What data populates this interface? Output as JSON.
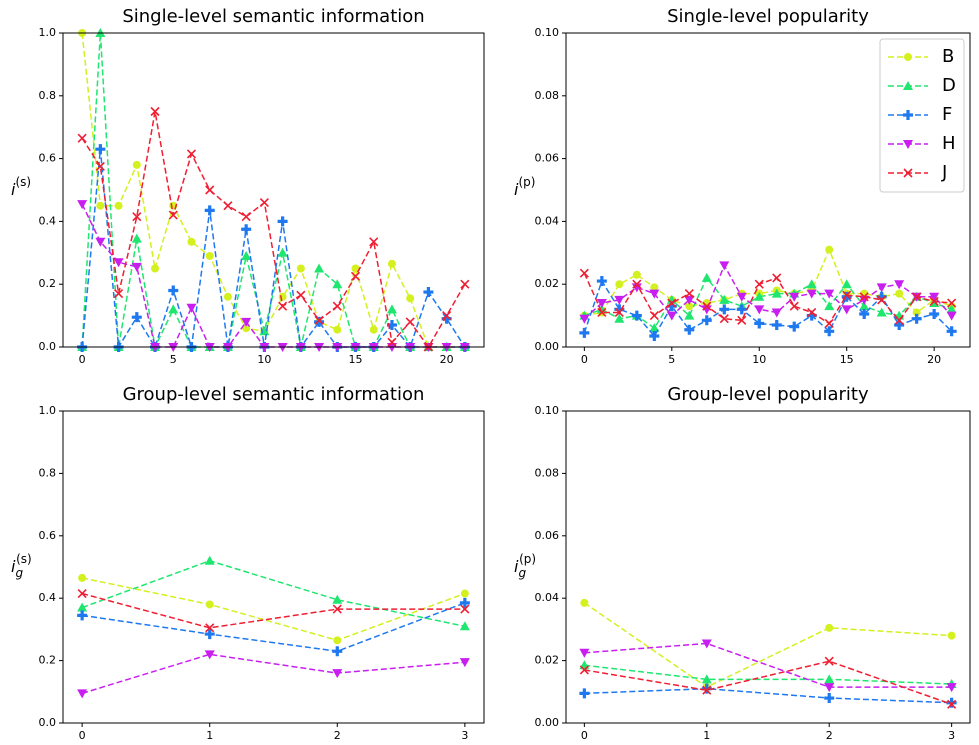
{
  "chart_data": [
    {
      "type": "line",
      "title": "Single-level semantic information",
      "ylabel": {
        "main": "i",
        "sup": "(s)"
      },
      "x": [
        0,
        1,
        2,
        3,
        4,
        5,
        6,
        7,
        8,
        9,
        10,
        11,
        12,
        13,
        14,
        15,
        16,
        17,
        18,
        19,
        20,
        21
      ],
      "xlim": [
        -1.05,
        22.05
      ],
      "xticks": [
        0,
        5,
        10,
        15,
        20
      ],
      "ylim": [
        0,
        1.0
      ],
      "yticks": [
        {
          "value": 0,
          "label": "0.0"
        },
        {
          "value": 0.2,
          "label": "0.2"
        },
        {
          "value": 0.4,
          "label": "0.4"
        },
        {
          "value": 0.6,
          "label": "0.6"
        },
        {
          "value": 0.8,
          "label": "0.8"
        },
        {
          "value": 1.0,
          "label": "1.0"
        }
      ],
      "series": [
        {
          "color": "#d4f01e",
          "marker": "circle",
          "values": [
            1.0,
            0.45,
            0.45,
            0.58,
            0.25,
            0.45,
            0.335,
            0.29,
            0.16,
            0.06,
            0.05,
            0.16,
            0.25,
            0.08,
            0.055,
            0.25,
            0.055,
            0.265,
            0.155,
            0,
            0,
            0
          ]
        },
        {
          "color": "#1ee66e",
          "marker": "triangle-up",
          "values": [
            0,
            1.0,
            0,
            0.345,
            0,
            0.12,
            0,
            0,
            0,
            0.29,
            0.05,
            0.3,
            0,
            0.25,
            0.2,
            0,
            0,
            0.12,
            0,
            0,
            0,
            0
          ]
        },
        {
          "color": "#1e78f0",
          "marker": "plus",
          "values": [
            0,
            0.63,
            0,
            0.095,
            0,
            0.18,
            0,
            0.435,
            0,
            0.375,
            0,
            0.4,
            0,
            0.08,
            0,
            0,
            0,
            0.07,
            0,
            0.175,
            0.09,
            0
          ]
        },
        {
          "color": "#c81ef0",
          "marker": "triangle-down",
          "values": [
            0.455,
            0.335,
            0.27,
            0.255,
            0,
            0,
            0.125,
            0,
            0,
            0.08,
            0,
            0,
            0,
            0,
            0,
            0,
            0,
            0,
            0,
            0,
            0,
            0
          ]
        },
        {
          "color": "#f01e32",
          "marker": "x",
          "values": [
            0.665,
            0.575,
            0.17,
            0.415,
            0.75,
            0.42,
            0.615,
            0.5,
            0.45,
            0.415,
            0.46,
            0.13,
            0.165,
            0.085,
            0.13,
            0.225,
            0.335,
            0.015,
            0.08,
            0,
            0.1,
            0.2
          ]
        }
      ]
    },
    {
      "type": "line",
      "title": "Single-level popularity",
      "ylabel": {
        "main": "i",
        "sup": "(p)"
      },
      "x": [
        0,
        1,
        2,
        3,
        4,
        5,
        6,
        7,
        8,
        9,
        10,
        11,
        12,
        13,
        14,
        15,
        16,
        17,
        18,
        19,
        20,
        21
      ],
      "xlim": [
        -1.05,
        22.05
      ],
      "xticks": [
        0,
        5,
        10,
        15,
        20
      ],
      "ylim": [
        0,
        0.1
      ],
      "yticks": [
        {
          "value": 0,
          "label": "0.00"
        },
        {
          "value": 0.02,
          "label": "0.02"
        },
        {
          "value": 0.04,
          "label": "0.04"
        },
        {
          "value": 0.06,
          "label": "0.06"
        },
        {
          "value": 0.08,
          "label": "0.08"
        },
        {
          "value": 0.1,
          "label": "0.10"
        }
      ],
      "legend": "upper right",
      "series": [
        {
          "name": "B",
          "color": "#d4f01e",
          "marker": "circle",
          "values": [
            0.01,
            0.011,
            0.02,
            0.023,
            0.019,
            0.015,
            0.013,
            0.014,
            0.015,
            0.017,
            0.017,
            0.018,
            0.017,
            0.018,
            0.031,
            0.017,
            0.017,
            0.016,
            0.017,
            0.011,
            0.015,
            0.013
          ]
        },
        {
          "name": "D",
          "color": "#1ee66e",
          "marker": "triangle-up",
          "values": [
            0.01,
            0.012,
            0.009,
            0.01,
            0.006,
            0.015,
            0.01,
            0.022,
            0.015,
            0.013,
            0.016,
            0.017,
            0.017,
            0.02,
            0.013,
            0.02,
            0.013,
            0.011,
            0.01,
            0.016,
            0.014,
            0.012
          ]
        },
        {
          "name": "F",
          "color": "#1e78f0",
          "marker": "plus",
          "values": [
            0.0045,
            0.021,
            0.012,
            0.01,
            0.0035,
            0.013,
            0.0055,
            0.0085,
            0.012,
            0.012,
            0.0075,
            0.007,
            0.0065,
            0.01,
            0.005,
            0.016,
            0.0105,
            0.016,
            0.007,
            0.009,
            0.0105,
            0.005
          ]
        },
        {
          "name": "H",
          "color": "#c81ef0",
          "marker": "triangle-down",
          "values": [
            0.009,
            0.014,
            0.015,
            0.019,
            0.017,
            0.01,
            0.015,
            0.012,
            0.026,
            0.016,
            0.012,
            0.011,
            0.016,
            0.017,
            0.017,
            0.012,
            0.015,
            0.019,
            0.02,
            0.016,
            0.016,
            0.01
          ]
        },
        {
          "name": "J",
          "color": "#f01e32",
          "marker": "x",
          "values": [
            0.0235,
            0.011,
            0.011,
            0.02,
            0.01,
            0.014,
            0.017,
            0.013,
            0.009,
            0.0085,
            0.02,
            0.022,
            0.013,
            0.011,
            0.0075,
            0.0165,
            0.016,
            0.015,
            0.0085,
            0.016,
            0.0145,
            0.014
          ]
        }
      ]
    },
    {
      "type": "line",
      "title": "Group-level semantic information",
      "ylabel": {
        "main": "i",
        "sub": "g",
        "sup": "(s)"
      },
      "x": [
        0,
        1,
        2,
        3
      ],
      "xlim": [
        -0.15,
        3.15
      ],
      "xticks": [
        0,
        1,
        2,
        3
      ],
      "ylim": [
        0,
        1.0
      ],
      "yticks": [
        {
          "value": 0,
          "label": "0.0"
        },
        {
          "value": 0.2,
          "label": "0.2"
        },
        {
          "value": 0.4,
          "label": "0.4"
        },
        {
          "value": 0.6,
          "label": "0.6"
        },
        {
          "value": 0.8,
          "label": "0.8"
        },
        {
          "value": 1.0,
          "label": "1.0"
        }
      ],
      "series": [
        {
          "color": "#d4f01e",
          "marker": "circle",
          "values": [
            0.465,
            0.38,
            0.265,
            0.415
          ]
        },
        {
          "color": "#1ee66e",
          "marker": "triangle-up",
          "values": [
            0.37,
            0.52,
            0.395,
            0.31
          ]
        },
        {
          "color": "#1e78f0",
          "marker": "plus",
          "values": [
            0.345,
            0.285,
            0.23,
            0.385
          ]
        },
        {
          "color": "#c81ef0",
          "marker": "triangle-down",
          "values": [
            0.095,
            0.22,
            0.16,
            0.195
          ]
        },
        {
          "color": "#f01e32",
          "marker": "x",
          "values": [
            0.415,
            0.305,
            0.365,
            0.365
          ]
        }
      ]
    },
    {
      "type": "line",
      "title": "Group-level popularity",
      "ylabel": {
        "main": "i",
        "sub": "g",
        "sup": "(p)"
      },
      "x": [
        0,
        1,
        2,
        3
      ],
      "xlim": [
        -0.15,
        3.15
      ],
      "xticks": [
        0,
        1,
        2,
        3
      ],
      "ylim": [
        0,
        0.1
      ],
      "yticks": [
        {
          "value": 0,
          "label": "0.00"
        },
        {
          "value": 0.02,
          "label": "0.02"
        },
        {
          "value": 0.04,
          "label": "0.04"
        },
        {
          "value": 0.06,
          "label": "0.06"
        },
        {
          "value": 0.08,
          "label": "0.08"
        },
        {
          "value": 0.1,
          "label": "0.10"
        }
      ],
      "series": [
        {
          "color": "#d4f01e",
          "marker": "circle",
          "values": [
            0.0385,
            0.0115,
            0.0305,
            0.028
          ]
        },
        {
          "color": "#1ee66e",
          "marker": "triangle-up",
          "values": [
            0.0185,
            0.014,
            0.014,
            0.0125
          ]
        },
        {
          "color": "#1e78f0",
          "marker": "plus",
          "values": [
            0.0095,
            0.011,
            0.008,
            0.0065
          ]
        },
        {
          "color": "#c81ef0",
          "marker": "triangle-down",
          "values": [
            0.0225,
            0.0255,
            0.0115,
            0.0115
          ]
        },
        {
          "color": "#f01e32",
          "marker": "x",
          "values": [
            0.017,
            0.0105,
            0.0198,
            0.006
          ]
        }
      ]
    }
  ]
}
